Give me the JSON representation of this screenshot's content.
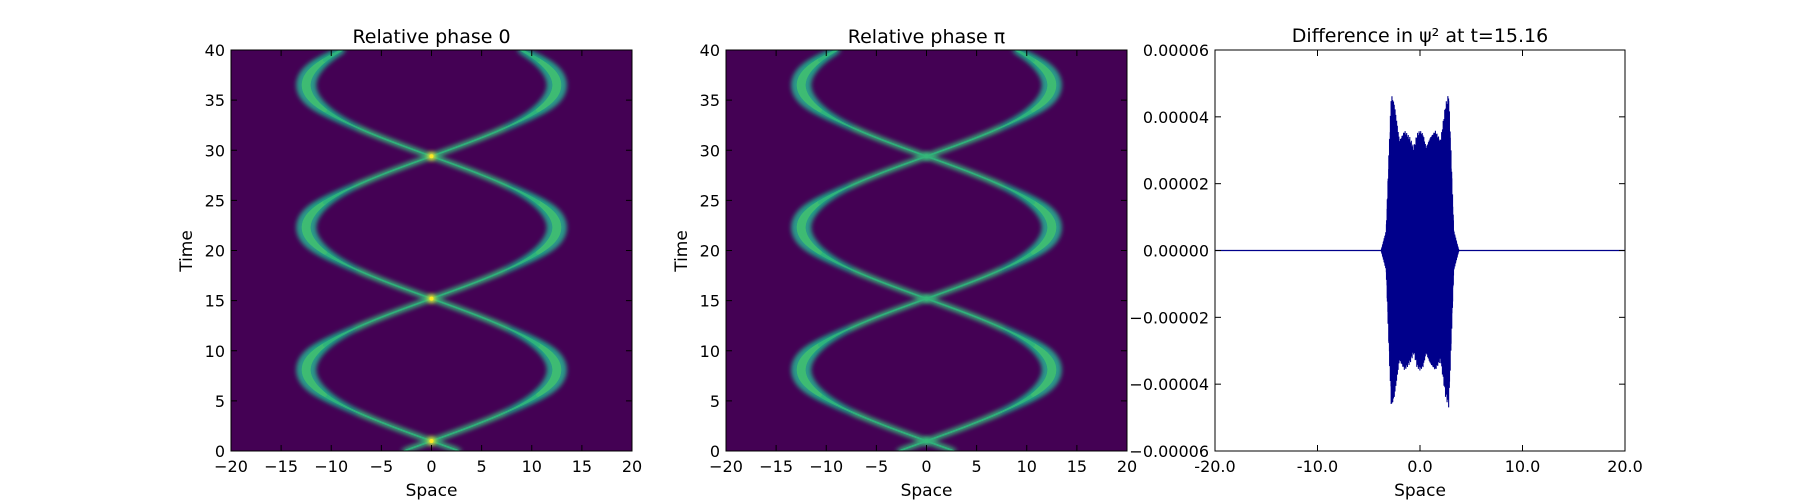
{
  "chart_data": [
    {
      "type": "heatmap",
      "title": "Relative phase 0",
      "xlabel": "Space",
      "ylabel": "Time",
      "xlim": [
        -20,
        20
      ],
      "ylim": [
        0,
        40
      ],
      "xticks": [
        "−20",
        "−15",
        "−10",
        "−5",
        "0",
        "5",
        "10",
        "15",
        "20"
      ],
      "yticks": [
        "0",
        "5",
        "10",
        "15",
        "20",
        "25",
        "30",
        "35",
        "40"
      ],
      "colormap": "viridis",
      "background_color": "#440154",
      "trajectory": {
        "amplitude": 12.5,
        "period": 14.2,
        "phase_at_t0": 1.0,
        "crossings": [
          1.0,
          15.2,
          29.4
        ]
      },
      "crossing_peak_color": "#fde725"
    },
    {
      "type": "heatmap",
      "title": "Relative phase π",
      "xlabel": "Space",
      "ylabel": "Time",
      "xlim": [
        -20,
        20
      ],
      "ylim": [
        0,
        40
      ],
      "xticks": [
        "−20",
        "−15",
        "−10",
        "−5",
        "0",
        "5",
        "10",
        "15",
        "20"
      ],
      "yticks": [
        "0",
        "5",
        "10",
        "15",
        "20",
        "25",
        "30",
        "35",
        "40"
      ],
      "colormap": "viridis",
      "background_color": "#440154",
      "trajectory": {
        "amplitude": 12.5,
        "period": 14.2,
        "phase_at_t0": 1.0,
        "crossings": [
          1.0,
          15.2,
          29.4
        ]
      },
      "crossing_peak_color": "#35b779"
    },
    {
      "type": "line",
      "title": "Difference in ψ² at t=15.16",
      "xlabel": "Space",
      "ylabel": "",
      "xlim": [
        -20,
        20
      ],
      "ylim": [
        -6e-05,
        6e-05
      ],
      "xticks": [
        "-20.0",
        "-10.0",
        "0.0",
        "10.0",
        "20.0"
      ],
      "yticks": [
        "−0.00006",
        "−0.00004",
        "−0.00002",
        "0.00000",
        "0.00002",
        "0.00004",
        "0.00006"
      ],
      "line_color": "#00008b",
      "envelope": {
        "x": [
          -3.8,
          -3.3,
          -3.0,
          -2.8,
          -2.5,
          -2.0,
          -1.5,
          -1.0,
          -0.6,
          -0.3,
          0.0,
          0.3,
          0.6,
          1.0,
          1.5,
          2.0,
          2.5,
          2.8,
          3.0,
          3.3,
          3.8
        ],
        "amplitude": [
          0.0,
          6e-06,
          3.2e-05,
          4.7e-05,
          4.4e-05,
          3.3e-05,
          3.6e-05,
          3.4e-05,
          3.1e-05,
          3.5e-05,
          3.6e-05,
          3.5e-05,
          3.1e-05,
          3.4e-05,
          3.6e-05,
          3.3e-05,
          4.4e-05,
          4.7e-05,
          3.2e-05,
          6e-06,
          0.0
        ]
      }
    }
  ]
}
